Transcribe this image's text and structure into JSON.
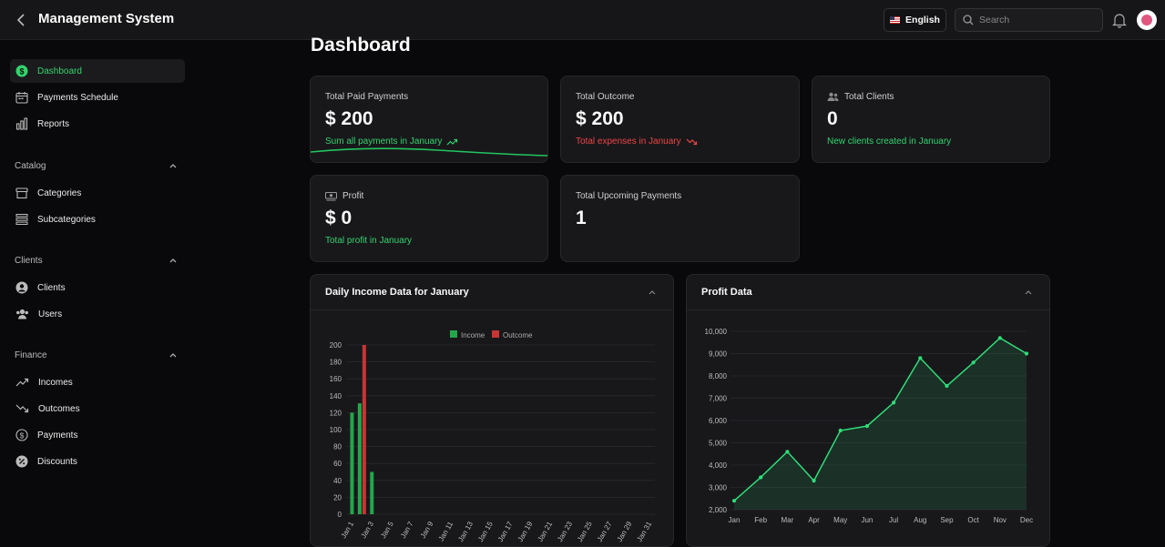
{
  "header": {
    "title": "Management System",
    "language": "English",
    "search_placeholder": "Search"
  },
  "sidebar": {
    "top_items": [
      {
        "label": "Dashboard",
        "icon": "dollar-circle-icon",
        "active": true
      },
      {
        "label": "Payments Schedule",
        "icon": "calendar-icon"
      },
      {
        "label": "Reports",
        "icon": "bar-chart-icon"
      }
    ],
    "sections": [
      {
        "label": "Catalog",
        "items": [
          {
            "label": "Categories",
            "icon": "archive-icon"
          },
          {
            "label": "Subcategories",
            "icon": "list-icon"
          }
        ]
      },
      {
        "label": "Clients",
        "items": [
          {
            "label": "Clients",
            "icon": "user-circle-icon"
          },
          {
            "label": "Users",
            "icon": "users-icon"
          }
        ]
      },
      {
        "label": "Finance",
        "items": [
          {
            "label": "Incomes",
            "icon": "trending-up-icon"
          },
          {
            "label": "Outcomes",
            "icon": "trending-down-icon"
          },
          {
            "label": "Payments",
            "icon": "dollar-icon"
          },
          {
            "label": "Discounts",
            "icon": "percent-icon"
          }
        ]
      }
    ]
  },
  "page": {
    "title": "Dashboard"
  },
  "cards": [
    {
      "label": "Total Paid Payments",
      "value": "$ 200",
      "sub": "Sum all payments in January",
      "tone": "green",
      "icon": "trending-up-icon"
    },
    {
      "label": "Total Outcome",
      "value": "$ 200",
      "sub": "Total expenses in January",
      "tone": "red",
      "icon": "trending-down-icon"
    },
    {
      "label": "Total Clients",
      "value": "0",
      "sub": "New clients created in January",
      "tone": "green",
      "icon": "users-icon"
    },
    {
      "label": "Profit",
      "value": "$ 0",
      "sub": "Total profit in January",
      "tone": "green",
      "icon": "cash-icon"
    },
    {
      "label": "Total Upcoming Payments",
      "value": "1",
      "sub": "",
      "tone": "green"
    }
  ],
  "colors": {
    "accent": "#34d36d",
    "income": "#22a84a",
    "outcome": "#c73535",
    "line": "#2fdc78",
    "bg": "#09090b",
    "card": "#18181b"
  },
  "chart_data": [
    {
      "type": "bar",
      "title": "Daily Income Data for January",
      "legend": [
        "Income",
        "Outcome"
      ],
      "legend_position": "top",
      "ylim": [
        0,
        200
      ],
      "yticks": [
        0,
        20,
        40,
        60,
        80,
        100,
        120,
        140,
        160,
        180,
        200
      ],
      "xticks": [
        "Jan 1",
        "Jan 3",
        "Jan 5",
        "Jan 7",
        "Jan 9",
        "Jan 11",
        "Jan 13",
        "Jan 15",
        "Jan 17",
        "Jan 19",
        "Jan 21",
        "Jan 23",
        "Jan 25",
        "Jan 27",
        "Jan 29",
        "Jan 31"
      ],
      "series": [
        {
          "name": "Income",
          "points": [
            {
              "day": 1,
              "value": 120
            },
            {
              "day": 2,
              "value": 131
            },
            {
              "day": 3,
              "value": 50
            }
          ]
        },
        {
          "name": "Outcome",
          "points": [
            {
              "day": 2,
              "value": 200
            }
          ]
        }
      ],
      "grid": true
    },
    {
      "type": "area",
      "title": "Profit Data",
      "categories": [
        "Jan",
        "Feb",
        "Mar",
        "Apr",
        "May",
        "Jun",
        "Jul",
        "Aug",
        "Sep",
        "Oct",
        "Nov",
        "Dec"
      ],
      "values": [
        2400,
        3450,
        4600,
        3300,
        5550,
        5750,
        6800,
        8800,
        7550,
        8600,
        9700,
        9000
      ],
      "ylim": [
        2000,
        10000
      ],
      "yticks": [
        2000,
        3000,
        4000,
        5000,
        6000,
        7000,
        8000,
        9000,
        10000
      ],
      "ytick_labels": [
        "2,000",
        "3,000",
        "4,000",
        "5,000",
        "6,000",
        "7,000",
        "8,000",
        "9,000",
        "10,000"
      ],
      "grid": true
    }
  ]
}
